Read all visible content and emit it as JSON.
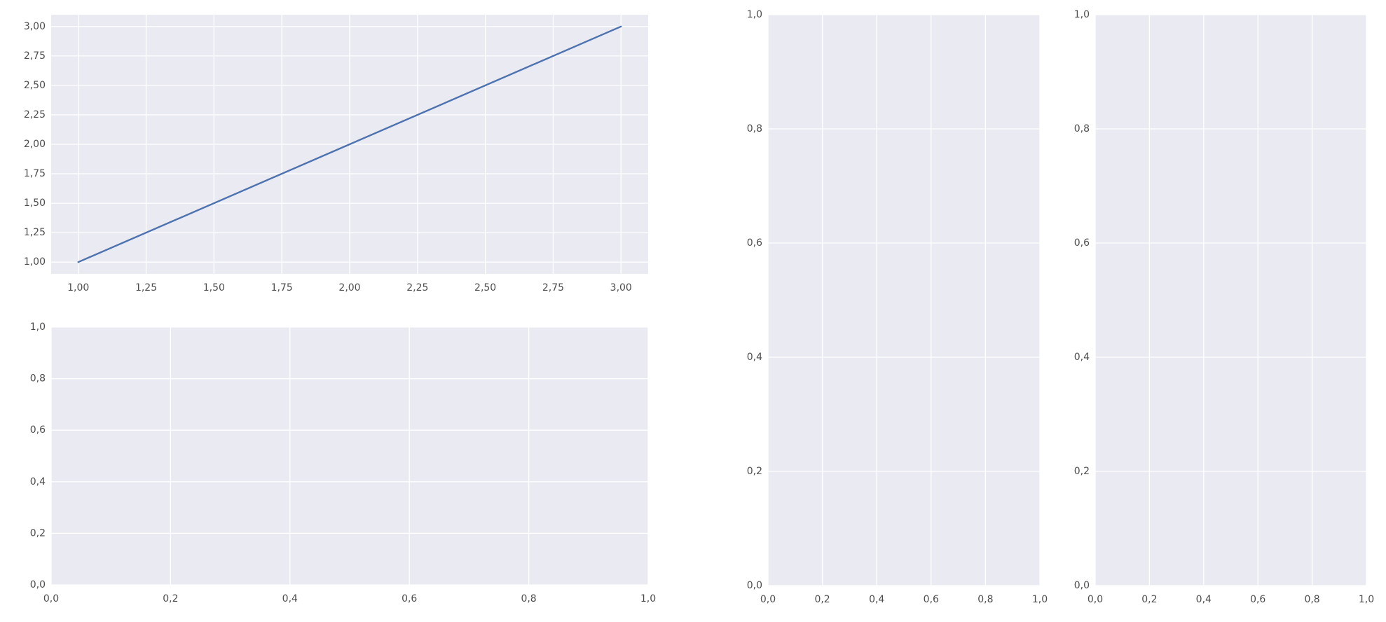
{
  "chart_data": [
    {
      "type": "line",
      "x": [
        1,
        2,
        3
      ],
      "series": [
        {
          "color": "#4c72b0",
          "values": [
            1,
            2,
            3
          ]
        }
      ],
      "xlim": [
        0.9,
        3.1
      ],
      "ylim": [
        0.9,
        3.1
      ],
      "grid": true,
      "xticks": [
        {
          "value": 1,
          "label": "1,00"
        },
        {
          "value": 1.25,
          "label": "1,25"
        },
        {
          "value": 1.5,
          "label": "1,50"
        },
        {
          "value": 1.75,
          "label": "1,75"
        },
        {
          "value": 2,
          "label": "2,00"
        },
        {
          "value": 2.25,
          "label": "2,25"
        },
        {
          "value": 2.5,
          "label": "2,50"
        },
        {
          "value": 2.75,
          "label": "2,75"
        },
        {
          "value": 3,
          "label": "3,00"
        }
      ],
      "yticks": [
        {
          "value": 1,
          "label": "1,00"
        },
        {
          "value": 1.25,
          "label": "1,25"
        },
        {
          "value": 1.5,
          "label": "1,50"
        },
        {
          "value": 1.75,
          "label": "1,75"
        },
        {
          "value": 2,
          "label": "2,00"
        },
        {
          "value": 2.25,
          "label": "2,25"
        },
        {
          "value": 2.5,
          "label": "2,50"
        },
        {
          "value": 2.75,
          "label": "2,75"
        },
        {
          "value": 3,
          "label": "3,00"
        }
      ]
    },
    {
      "type": "line",
      "xlim": [
        0,
        1
      ],
      "ylim": [
        0,
        1
      ],
      "grid": true,
      "xticks": [
        {
          "value": 0,
          "label": "0,0"
        },
        {
          "value": 0.2,
          "label": "0,2"
        },
        {
          "value": 0.4,
          "label": "0,4"
        },
        {
          "value": 0.6,
          "label": "0,6"
        },
        {
          "value": 0.8,
          "label": "0,8"
        },
        {
          "value": 1,
          "label": "1,0"
        }
      ],
      "yticks": [
        {
          "value": 0,
          "label": "0,0"
        },
        {
          "value": 0.2,
          "label": "0,2"
        },
        {
          "value": 0.4,
          "label": "0,4"
        },
        {
          "value": 0.6,
          "label": "0,6"
        },
        {
          "value": 0.8,
          "label": "0,8"
        },
        {
          "value": 1,
          "label": "1,0"
        }
      ]
    },
    {
      "type": "line",
      "xlim": [
        0,
        1
      ],
      "ylim": [
        0,
        1
      ],
      "grid": true,
      "xticks": [
        {
          "value": 0,
          "label": "0,0"
        },
        {
          "value": 0.2,
          "label": "0,2"
        },
        {
          "value": 0.4,
          "label": "0,4"
        },
        {
          "value": 0.6,
          "label": "0,6"
        },
        {
          "value": 0.8,
          "label": "0,8"
        },
        {
          "value": 1,
          "label": "1,0"
        }
      ],
      "yticks": [
        {
          "value": 0,
          "label": "0,0"
        },
        {
          "value": 0.2,
          "label": "0,2"
        },
        {
          "value": 0.4,
          "label": "0,4"
        },
        {
          "value": 0.6,
          "label": "0,6"
        },
        {
          "value": 0.8,
          "label": "0,8"
        },
        {
          "value": 1,
          "label": "1,0"
        }
      ]
    },
    {
      "type": "line",
      "xlim": [
        0,
        1
      ],
      "ylim": [
        0,
        1
      ],
      "grid": true,
      "xticks": [
        {
          "value": 0,
          "label": "0,0"
        },
        {
          "value": 0.2,
          "label": "0,2"
        },
        {
          "value": 0.4,
          "label": "0,4"
        },
        {
          "value": 0.6,
          "label": "0,6"
        },
        {
          "value": 0.8,
          "label": "0,8"
        },
        {
          "value": 1,
          "label": "1,0"
        }
      ],
      "yticks": [
        {
          "value": 0,
          "label": "0,0"
        },
        {
          "value": 0.2,
          "label": "0,2"
        },
        {
          "value": 0.4,
          "label": "0,4"
        },
        {
          "value": 0.6,
          "label": "0,6"
        },
        {
          "value": 0.8,
          "label": "0,8"
        },
        {
          "value": 1,
          "label": "1,0"
        }
      ]
    }
  ]
}
